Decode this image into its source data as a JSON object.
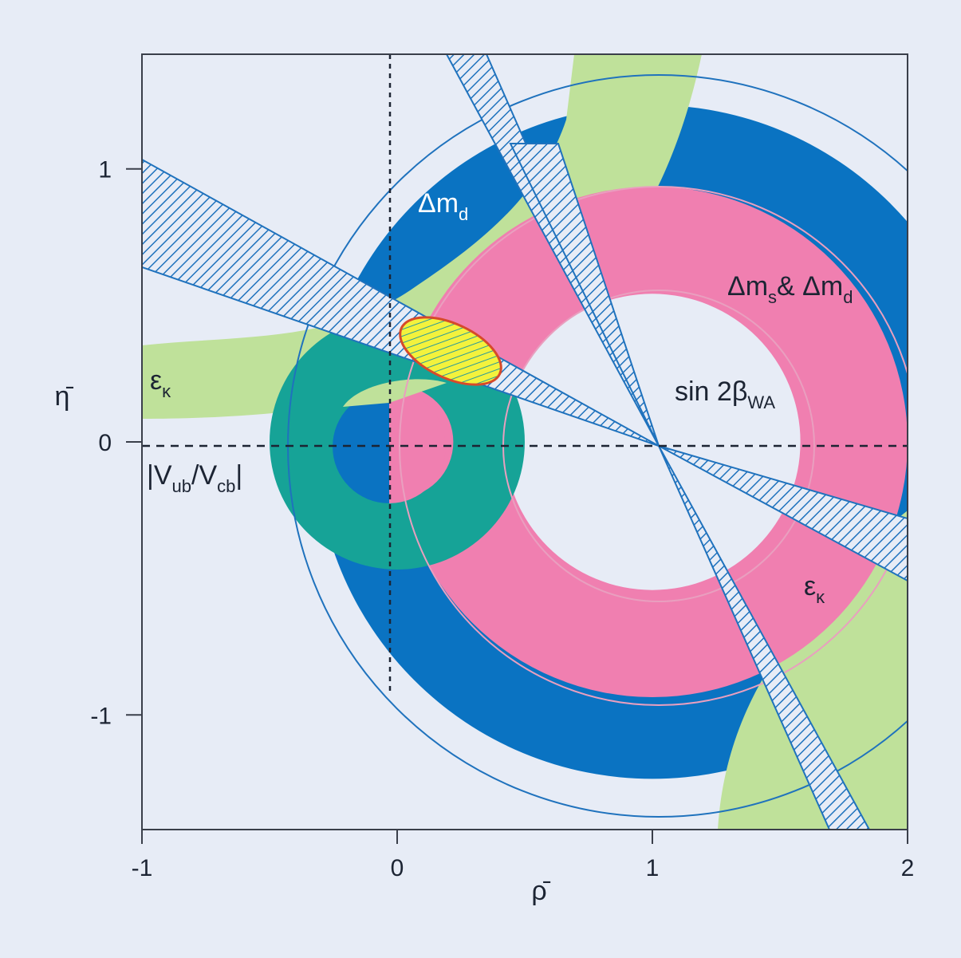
{
  "chart_data": {
    "type": "other",
    "description_kind": "unitarity-triangle constraint plot",
    "xlabel": "ρ̄",
    "ylabel": "η̄",
    "xlim": [
      -1,
      2
    ],
    "ylim": [
      -1.42,
      1.42
    ],
    "x_ticks": [
      "-1",
      "0",
      "1",
      "2"
    ],
    "y_ticks": [
      "1",
      "0",
      "-1"
    ],
    "x_tick_values": [
      -1,
      0,
      1,
      2
    ],
    "y_tick_values": [
      1,
      0,
      -1
    ],
    "dashed_lines": {
      "x": 0,
      "y": 0
    },
    "colors": {
      "background": "#e7ecf6",
      "delta_md": "#0a73c2",
      "epsilon_k": "#bfe19a",
      "delta_ms": "#f07fb0",
      "vub_vcb": "#16a397",
      "sin2beta": "#1f72bd",
      "fit_region": "#f3f23d"
    },
    "regions": {
      "delta_md": {
        "label_main": "Δm",
        "label_sub": "d",
        "center": [
          1,
          0
        ],
        "r_inner": 0.78,
        "r_outer": 1.32
      },
      "delta_ms_delta_md": {
        "label_main_1": "Δm",
        "label_sub_1": "s",
        "label_main_2": "& Δm",
        "label_sub_2": "d",
        "center": [
          1,
          0
        ],
        "r_inner": 0.58,
        "r_outer": 1.0
      },
      "vub_vcb": {
        "label_main": "|V",
        "label_sub_1": "ub",
        "label_mid": "/V",
        "label_sub_2": "cb",
        "label_end": "|",
        "center": [
          0,
          0
        ],
        "r_inner": 0.22,
        "r_outer": 0.5
      },
      "epsilon_k": {
        "label": "ε",
        "label_sub": "κ"
      },
      "sin2beta": {
        "label_main": "sin 2β",
        "label_sub": "WA",
        "apex": [
          1,
          0
        ]
      },
      "fit": {
        "center": [
          0.2,
          0.37
        ]
      }
    }
  }
}
